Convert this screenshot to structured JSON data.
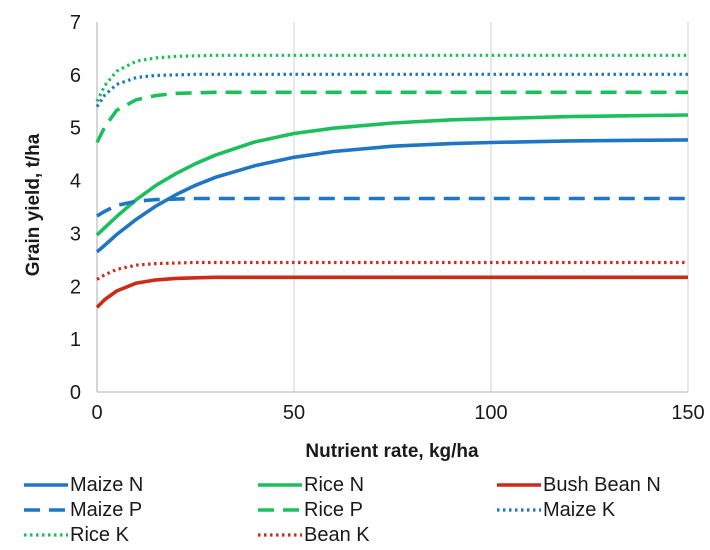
{
  "chart_data": {
    "type": "line",
    "title": "",
    "xlabel": "Nutrient rate, kg/ha",
    "ylabel": "Grain yield, t/ha",
    "xlim": [
      0,
      150
    ],
    "ylim": [
      0,
      7
    ],
    "x_ticks": [
      "0",
      "50",
      "100",
      "150"
    ],
    "y_ticks": [
      "0",
      "1",
      "2",
      "3",
      "4",
      "5",
      "6",
      "7"
    ],
    "grid": "vertical",
    "legend_position": "bottom",
    "x": [
      0,
      2,
      5,
      10,
      15,
      20,
      25,
      30,
      40,
      50,
      60,
      75,
      90,
      100,
      120,
      150
    ],
    "series": [
      {
        "name": "Maize N",
        "color": "#1f77c4",
        "style": "solid",
        "values": [
          2.65,
          2.78,
          2.98,
          3.27,
          3.52,
          3.73,
          3.91,
          4.06,
          4.28,
          4.44,
          4.55,
          4.65,
          4.7,
          4.72,
          4.75,
          4.77
        ]
      },
      {
        "name": "Rice N",
        "color": "#1dbf5d",
        "style": "solid",
        "values": [
          2.97,
          3.11,
          3.32,
          3.64,
          3.91,
          4.13,
          4.32,
          4.48,
          4.73,
          4.89,
          4.99,
          5.09,
          5.15,
          5.17,
          5.21,
          5.24
        ]
      },
      {
        "name": "Bush Bean N",
        "color": "#cc2b1a",
        "style": "solid",
        "values": [
          1.6,
          1.75,
          1.91,
          2.06,
          2.12,
          2.15,
          2.16,
          2.17,
          2.17,
          2.17,
          2.17,
          2.17,
          2.17,
          2.17,
          2.17,
          2.17
        ]
      },
      {
        "name": "Maize P",
        "color": "#1f77c4",
        "style": "dashed",
        "values": [
          3.33,
          3.42,
          3.53,
          3.61,
          3.64,
          3.65,
          3.66,
          3.66,
          3.66,
          3.66,
          3.66,
          3.66,
          3.66,
          3.66,
          3.66,
          3.66
        ]
      },
      {
        "name": "Rice P",
        "color": "#1dbf5d",
        "style": "dashed",
        "values": [
          4.72,
          5.02,
          5.33,
          5.53,
          5.61,
          5.65,
          5.66,
          5.67,
          5.67,
          5.67,
          5.67,
          5.67,
          5.67,
          5.67,
          5.67,
          5.67
        ]
      },
      {
        "name": "Maize K",
        "color": "#1f77c4",
        "style": "dotted",
        "values": [
          5.4,
          5.62,
          5.82,
          5.95,
          5.99,
          6.0,
          6.01,
          6.01,
          6.01,
          6.01,
          6.01,
          6.01,
          6.01,
          6.01,
          6.01,
          6.01
        ]
      },
      {
        "name": "Rice K",
        "color": "#1dbf5d",
        "style": "dotted",
        "values": [
          5.5,
          5.8,
          6.07,
          6.26,
          6.32,
          6.35,
          6.36,
          6.37,
          6.37,
          6.37,
          6.37,
          6.37,
          6.37,
          6.37,
          6.37,
          6.37
        ]
      },
      {
        "name": "Bean K",
        "color": "#cc2b1a",
        "style": "dotted",
        "values": [
          2.13,
          2.22,
          2.32,
          2.4,
          2.43,
          2.44,
          2.45,
          2.45,
          2.45,
          2.45,
          2.45,
          2.45,
          2.45,
          2.45,
          2.45,
          2.45
        ]
      }
    ]
  }
}
